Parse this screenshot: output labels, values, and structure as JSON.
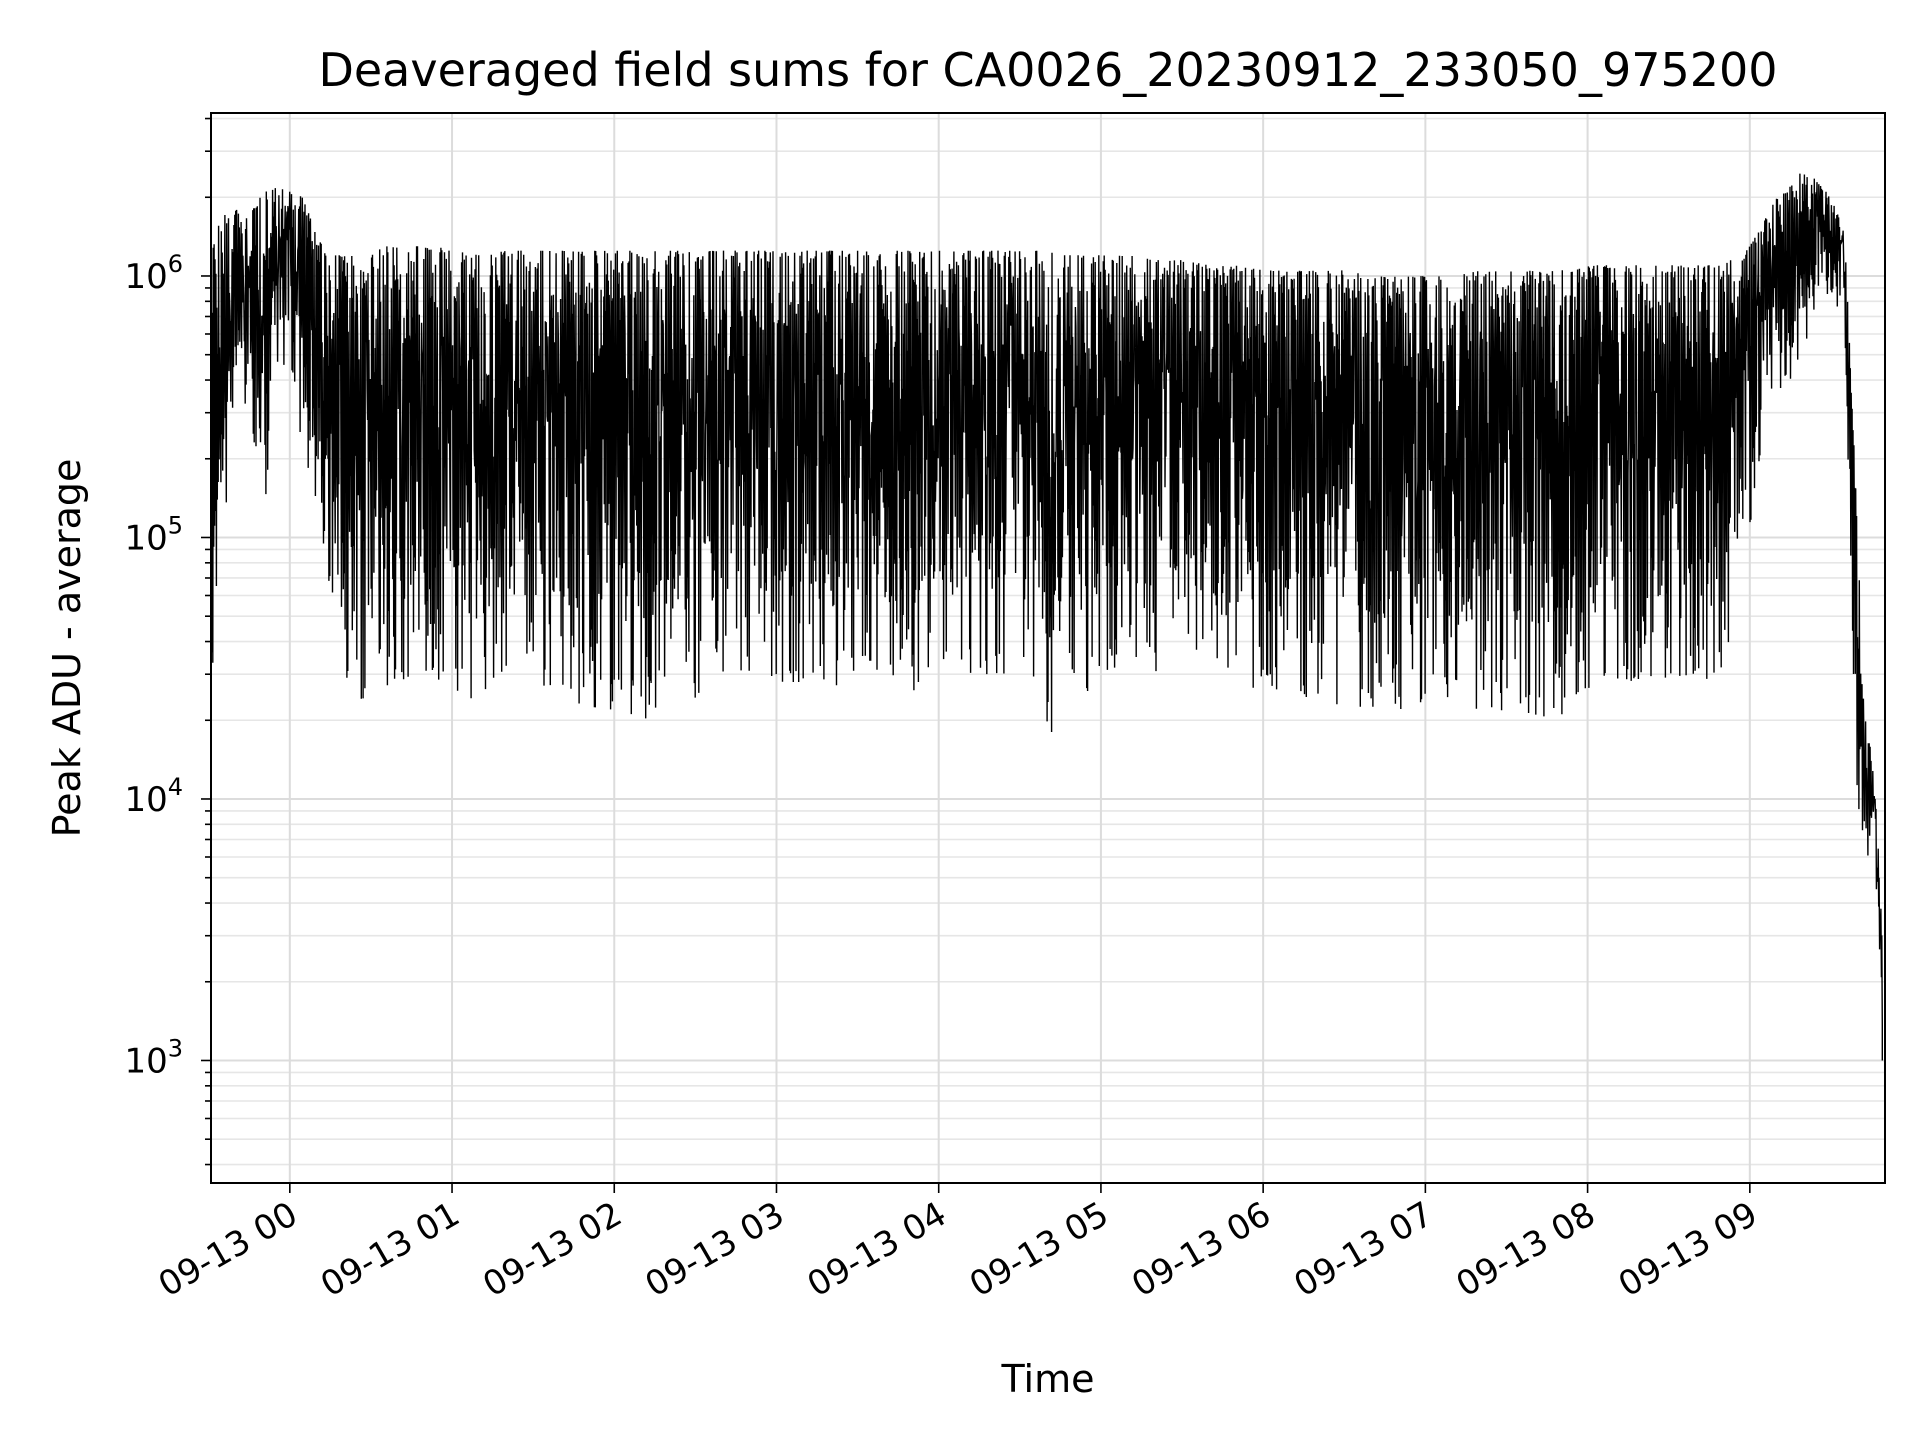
{
  "chart_data": {
    "type": "line",
    "title": "Deaveraged field sums for CA0026_20230912_233050_975200",
    "xlabel": "Time",
    "ylabel": "Peak ADU - average",
    "yscale": "log",
    "xlim": [
      "2023-09-12 23:30:51",
      "2023-09-13 09:50:00"
    ],
    "ylim": [
      340,
      4200000
    ],
    "grid": true,
    "xticks": [
      {
        "value": "2023-09-13 00:00",
        "label": "09-13 00"
      },
      {
        "value": "2023-09-13 01:00",
        "label": "09-13 01"
      },
      {
        "value": "2023-09-13 02:00",
        "label": "09-13 02"
      },
      {
        "value": "2023-09-13 03:00",
        "label": "09-13 03"
      },
      {
        "value": "2023-09-13 04:00",
        "label": "09-13 04"
      },
      {
        "value": "2023-09-13 05:00",
        "label": "09-13 05"
      },
      {
        "value": "2023-09-13 06:00",
        "label": "09-13 06"
      },
      {
        "value": "2023-09-13 07:00",
        "label": "09-13 07"
      },
      {
        "value": "2023-09-13 08:00",
        "label": "09-13 08"
      },
      {
        "value": "2023-09-13 09:00",
        "label": "09-13 09"
      }
    ],
    "yticks": [
      {
        "value": 1000,
        "base": "10",
        "exp": "3"
      },
      {
        "value": 10000,
        "base": "10",
        "exp": "4"
      },
      {
        "value": 100000,
        "base": "10",
        "exp": "5"
      },
      {
        "value": 1000000,
        "base": "10",
        "exp": "6"
      }
    ],
    "series": [
      {
        "color": "#000000",
        "x": [
          "2023-09-12 23:31",
          "2023-09-12 23:35",
          "2023-09-12 23:40",
          "2023-09-12 23:45",
          "2023-09-12 23:50",
          "2023-09-12 23:55",
          "2023-09-13 00:00",
          "2023-09-13 00:05",
          "2023-09-13 00:10",
          "2023-09-13 00:15",
          "2023-09-13 00:20",
          "2023-09-13 00:25",
          "2023-09-13 00:30",
          "2023-09-13 00:35",
          "2023-09-13 00:40",
          "2023-09-13 00:45",
          "2023-09-13 00:50",
          "2023-09-13 00:55",
          "2023-09-13 01:00",
          "2023-09-13 01:10",
          "2023-09-13 01:20",
          "2023-09-13 01:30",
          "2023-09-13 01:40",
          "2023-09-13 01:50",
          "2023-09-13 02:00",
          "2023-09-13 02:10",
          "2023-09-13 02:20",
          "2023-09-13 02:30",
          "2023-09-13 02:40",
          "2023-09-13 02:50",
          "2023-09-13 03:00",
          "2023-09-13 03:10",
          "2023-09-13 03:20",
          "2023-09-13 03:30",
          "2023-09-13 03:40",
          "2023-09-13 03:50",
          "2023-09-13 04:00",
          "2023-09-13 04:10",
          "2023-09-13 04:20",
          "2023-09-13 04:30",
          "2023-09-13 04:40",
          "2023-09-13 04:50",
          "2023-09-13 05:00",
          "2023-09-13 05:10",
          "2023-09-13 05:20",
          "2023-09-13 05:30",
          "2023-09-13 05:40",
          "2023-09-13 05:50",
          "2023-09-13 06:00",
          "2023-09-13 06:10",
          "2023-09-13 06:20",
          "2023-09-13 06:30",
          "2023-09-13 06:40",
          "2023-09-13 06:50",
          "2023-09-13 07:00",
          "2023-09-13 07:10",
          "2023-09-13 07:20",
          "2023-09-13 07:30",
          "2023-09-13 07:40",
          "2023-09-13 07:50",
          "2023-09-13 08:00",
          "2023-09-13 08:10",
          "2023-09-13 08:20",
          "2023-09-13 08:30",
          "2023-09-13 08:40",
          "2023-09-13 08:50",
          "2023-09-13 09:00",
          "2023-09-13 09:05",
          "2023-09-13 09:10",
          "2023-09-13 09:15",
          "2023-09-13 09:20",
          "2023-09-13 09:25",
          "2023-09-13 09:30",
          "2023-09-13 09:35",
          "2023-09-13 09:40",
          "2023-09-13 09:43",
          "2023-09-13 09:46",
          "2023-09-13 09:49"
        ],
        "peak": [
          1200000,
          1800000,
          1800000,
          1700000,
          2100000,
          2200000,
          2100000,
          2000000,
          1400000,
          1200000,
          1200000,
          1200000,
          1200000,
          1300000,
          1300000,
          1300000,
          1300000,
          1300000,
          1250000,
          1200000,
          1250000,
          1250000,
          1250000,
          1250000,
          1250000,
          1250000,
          1250000,
          1250000,
          1250000,
          1250000,
          1250000,
          1250000,
          1250000,
          1250000,
          1250000,
          1250000,
          1250000,
          1250000,
          1250000,
          1250000,
          1250000,
          1200000,
          1200000,
          1200000,
          1150000,
          1150000,
          1100000,
          1100000,
          1050000,
          1050000,
          1050000,
          1050000,
          1000000,
          1000000,
          1000000,
          1000000,
          1050000,
          1050000,
          1050000,
          1050000,
          1100000,
          1100000,
          1100000,
          1100000,
          1100000,
          1100000,
          1300000,
          1600000,
          2000000,
          2200000,
          2600000,
          2300000,
          2000000,
          1500000,
          100000,
          18000,
          14000,
          3000
        ],
        "trough": [
          28000,
          70000,
          350000,
          300000,
          95000,
          400000,
          500000,
          170000,
          140000,
          60000,
          28000,
          22000,
          25000,
          25000,
          26000,
          24000,
          24000,
          25000,
          25000,
          24000,
          30000,
          27000,
          26000,
          22000,
          22000,
          19500,
          23000,
          24000,
          30000,
          30000,
          28000,
          28000,
          25000,
          27000,
          27000,
          24000,
          30000,
          30000,
          30000,
          30000,
          17000,
          22000,
          30000,
          30000,
          29000,
          30000,
          28000,
          27000,
          26000,
          26000,
          23000,
          22000,
          22000,
          22000,
          23000,
          23000,
          22000,
          21000,
          21000,
          20000,
          23000,
          27000,
          29000,
          29000,
          29000,
          26000,
          90000,
          250000,
          250000,
          400000,
          500000,
          700000,
          700000,
          700000,
          5800,
          5800,
          7000,
          1000
        ]
      }
    ]
  }
}
